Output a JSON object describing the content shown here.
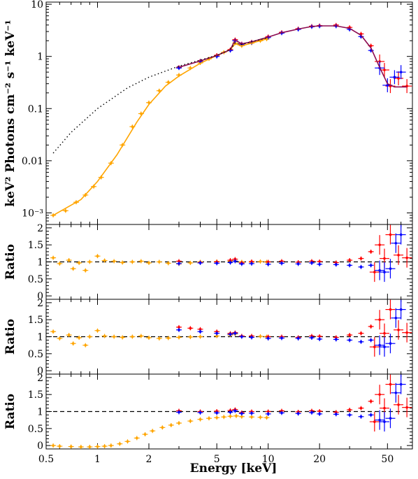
{
  "chart_data": {
    "type": "scatter",
    "xlabel": "Energy [keV]",
    "xscale": "log",
    "xlim": [
      0.5,
      70
    ],
    "xticks": [
      "0.5",
      "1",
      "2",
      "5",
      "10",
      "20",
      "50"
    ],
    "xtick_values": [
      0.5,
      1,
      2,
      5,
      10,
      20,
      50
    ],
    "colors": {
      "orange": "#FFA500",
      "red": "#FF0000",
      "blue": "#0000FF",
      "model": "#8B0A50",
      "dotted": "#000000"
    },
    "panels": [
      {
        "name": "spectrum",
        "ylabel": "keV² Photons cm⁻² s⁻¹ keV⁻¹",
        "yscale": "log",
        "ylim": [
          0.0006,
          11
        ],
        "yticks": [
          "10⁻³",
          "0.01",
          "0.1",
          "1",
          "10"
        ],
        "ytick_values": [
          0.001,
          0.01,
          0.1,
          1,
          10
        ],
        "series": [
          {
            "role": "orange data",
            "color": "#FFA500",
            "x": [
              0.55,
              0.65,
              0.75,
              0.85,
              0.95,
              1.05,
              1.2,
              1.4,
              1.6,
              1.8,
              2.0,
              2.3,
              2.6,
              3.0,
              3.5,
              4.0,
              4.5,
              5.0,
              5.5,
              6.0,
              6.4,
              7.0,
              8.0,
              9.0,
              9.8
            ],
            "y": [
              0.0009,
              0.0011,
              0.0016,
              0.0022,
              0.0032,
              0.0048,
              0.009,
              0.02,
              0.045,
              0.08,
              0.13,
              0.22,
              0.32,
              0.44,
              0.6,
              0.75,
              0.9,
              1.05,
              1.2,
              1.35,
              1.8,
              1.6,
              1.8,
              2.0,
              2.15
            ]
          },
          {
            "role": "red data",
            "color": "#FF0000",
            "x": [
              3,
              4,
              5,
              6,
              6.4,
              7,
              8,
              10,
              12,
              15,
              18,
              20,
              25,
              30,
              35,
              40,
              45,
              48,
              52,
              58,
              65
            ],
            "y": [
              0.62,
              0.82,
              1.05,
              1.35,
              2.1,
              1.75,
              1.9,
              2.4,
              2.9,
              3.4,
              3.8,
              3.9,
              4.0,
              3.6,
              2.7,
              1.6,
              0.8,
              0.55,
              0.27,
              0.38,
              0.27
            ]
          },
          {
            "role": "blue data",
            "color": "#0000FF",
            "x": [
              3,
              4,
              5,
              6,
              6.4,
              7,
              8,
              10,
              12,
              15,
              18,
              20,
              25,
              30,
              35,
              40,
              45,
              50,
              55,
              60
            ],
            "y": [
              0.6,
              0.8,
              1.0,
              1.3,
              2.0,
              1.7,
              1.85,
              2.3,
              2.8,
              3.3,
              3.7,
              3.8,
              3.8,
              3.3,
              2.4,
              1.3,
              0.6,
              0.28,
              0.4,
              0.5
            ]
          },
          {
            "role": "orange model",
            "color": "#FFA500",
            "line": true,
            "x": [
              0.55,
              0.8,
              1.0,
              1.3,
              1.7,
              2.0,
              2.5,
              3.0,
              4.0,
              5.0,
              6.0,
              6.4,
              7.0,
              10.0
            ],
            "y": [
              0.0009,
              0.0018,
              0.004,
              0.013,
              0.055,
              0.12,
              0.27,
              0.42,
              0.74,
              1.04,
              1.35,
              1.75,
              1.6,
              2.2
            ]
          },
          {
            "role": "model",
            "color": "#8B0A50",
            "line": true,
            "x": [
              3,
              4,
              5,
              6,
              6.4,
              7,
              8,
              10,
              12,
              15,
              18,
              20,
              25,
              30,
              35,
              40,
              45,
              50,
              55,
              60,
              65
            ],
            "y": [
              0.62,
              0.82,
              1.04,
              1.35,
              2.05,
              1.75,
              1.9,
              2.35,
              2.85,
              3.35,
              3.75,
              3.85,
              3.85,
              3.45,
              2.55,
              1.45,
              0.62,
              0.3,
              0.26,
              0.26,
              0.26
            ]
          },
          {
            "role": "unabsorbed model",
            "color": "#000000",
            "dotted": true,
            "x": [
              0.55,
              0.7,
              1.0,
              1.5,
              2.0,
              3.0,
              4.0,
              5.0,
              6.0,
              6.4,
              7.0,
              10.0
            ],
            "y": [
              0.014,
              0.035,
              0.1,
              0.25,
              0.4,
              0.65,
              0.85,
              1.05,
              1.35,
              1.8,
              1.7,
              2.3
            ]
          }
        ]
      },
      {
        "name": "ratio1",
        "ylabel": "Ratio",
        "ylim": [
          -0.1,
          2.1
        ],
        "yticks": [
          "0",
          "0.5",
          "1",
          "1.5",
          "2"
        ],
        "ytick_values": [
          0,
          0.5,
          1,
          1.5,
          2
        ],
        "refline": 1,
        "series": [
          {
            "role": "orange",
            "color": "#FFA500",
            "x": [
              0.55,
              0.6,
              0.68,
              0.72,
              0.78,
              0.85,
              0.9,
              1.0,
              1.1,
              1.25,
              1.4,
              1.6,
              1.8,
              2.0,
              2.3,
              2.6,
              3.0,
              3.5,
              4.0,
              5.0,
              6.0,
              6.4,
              7.0,
              8.0,
              9.0,
              9.8
            ],
            "y": [
              1.12,
              0.95,
              1.05,
              0.8,
              0.97,
              0.75,
              1.0,
              1.17,
              1.04,
              1.02,
              0.98,
              1.0,
              1.02,
              0.97,
              1.0,
              0.96,
              0.94,
              0.97,
              1.0,
              1.01,
              1.02,
              1.03,
              1.0,
              0.99,
              1.01,
              1.0
            ]
          },
          {
            "role": "red",
            "color": "#FF0000",
            "x": [
              3,
              4,
              5,
              6,
              6.4,
              7,
              8,
              10,
              12,
              15,
              18,
              20,
              25,
              30,
              35,
              40,
              42,
              45,
              48,
              52,
              58,
              65
            ],
            "y": [
              1.02,
              0.98,
              1.0,
              1.05,
              1.08,
              0.97,
              1.01,
              1.0,
              1.02,
              0.99,
              1.02,
              1.01,
              0.98,
              1.05,
              1.1,
              1.3,
              0.7,
              1.5,
              1.1,
              1.8,
              1.2,
              1.12
            ]
          },
          {
            "role": "blue",
            "color": "#0000FF",
            "x": [
              3,
              4,
              5,
              6,
              6.4,
              7,
              8,
              10,
              12,
              15,
              18,
              20,
              25,
              30,
              35,
              40,
              45,
              48,
              52,
              56,
              60
            ],
            "y": [
              0.95,
              0.97,
              0.96,
              0.98,
              1.02,
              0.94,
              0.95,
              0.93,
              0.96,
              0.94,
              0.97,
              0.93,
              0.92,
              0.9,
              0.85,
              0.9,
              0.75,
              0.7,
              0.8,
              1.55,
              1.8
            ]
          }
        ]
      },
      {
        "name": "ratio2",
        "ylabel": "Ratio",
        "ylim": [
          -0.1,
          2.1
        ],
        "yticks": [
          "0",
          "0.5",
          "1",
          "1.5",
          "2"
        ],
        "ytick_values": [
          0,
          0.5,
          1,
          1.5,
          2
        ],
        "refline": 1,
        "series": [
          {
            "role": "orange",
            "color": "#FFA500",
            "x": [
              0.55,
              0.6,
              0.68,
              0.72,
              0.78,
              0.85,
              0.9,
              1.0,
              1.1,
              1.25,
              1.4,
              1.6,
              1.8,
              2.0,
              2.3,
              2.6,
              3.0,
              3.5,
              4.0,
              5.0,
              6.0,
              6.4,
              7.0,
              8.0,
              9.0,
              9.8
            ],
            "y": [
              1.15,
              0.95,
              1.05,
              0.8,
              0.97,
              0.75,
              1.0,
              1.18,
              1.02,
              1.0,
              0.98,
              1.0,
              1.02,
              0.97,
              0.95,
              0.96,
              0.98,
              0.99,
              1.0,
              1.02,
              1.05,
              1.08,
              1.02,
              1.02,
              1.01,
              1.0
            ]
          },
          {
            "role": "red",
            "color": "#FF0000",
            "x": [
              3,
              3.5,
              4,
              5,
              6,
              6.4,
              7,
              8,
              10,
              12,
              15,
              18,
              20,
              25,
              30,
              35,
              40,
              42,
              45,
              48,
              52,
              58,
              65
            ],
            "y": [
              1.28,
              1.25,
              1.22,
              1.15,
              1.1,
              1.12,
              1.02,
              1.02,
              1.0,
              1.0,
              0.98,
              1.02,
              1.01,
              0.98,
              1.05,
              1.1,
              1.3,
              0.7,
              1.5,
              1.1,
              1.8,
              1.2,
              1.12
            ]
          },
          {
            "role": "blue",
            "color": "#0000FF",
            "x": [
              3,
              4,
              5,
              6,
              6.4,
              7,
              8,
              10,
              12,
              15,
              18,
              20,
              25,
              30,
              35,
              40,
              45,
              48,
              52,
              56,
              60
            ],
            "y": [
              1.2,
              1.15,
              1.1,
              1.07,
              1.1,
              1.0,
              0.98,
              0.95,
              0.96,
              0.95,
              0.97,
              0.93,
              0.92,
              0.9,
              0.85,
              0.9,
              0.75,
              0.7,
              0.8,
              1.55,
              1.8
            ]
          }
        ]
      },
      {
        "name": "ratio3",
        "ylabel": "Ratio",
        "ylim": [
          -0.1,
          2.1
        ],
        "yticks": [
          "0",
          "0.5",
          "1",
          "1.5",
          "2"
        ],
        "ytick_values": [
          0,
          0.5,
          1,
          1.5,
          2
        ],
        "refline": 1,
        "series": [
          {
            "role": "orange",
            "color": "#FFA500",
            "x": [
              0.55,
              0.6,
              0.7,
              0.8,
              0.9,
              1.0,
              1.1,
              1.2,
              1.35,
              1.5,
              1.7,
              1.9,
              2.1,
              2.4,
              2.7,
              3.0,
              3.5,
              4.0,
              4.5,
              5.0,
              5.5,
              6.0,
              6.5,
              7.0,
              8.0,
              9.0,
              9.8
            ],
            "y": [
              0.0,
              -0.02,
              -0.03,
              -0.04,
              -0.04,
              -0.03,
              -0.02,
              0.0,
              0.05,
              0.12,
              0.22,
              0.33,
              0.43,
              0.53,
              0.6,
              0.66,
              0.72,
              0.77,
              0.8,
              0.82,
              0.84,
              0.86,
              0.87,
              0.85,
              0.84,
              0.83,
              0.82
            ]
          },
          {
            "role": "red",
            "color": "#FF0000",
            "x": [
              3,
              4,
              5,
              6,
              6.4,
              7,
              8,
              10,
              12,
              15,
              18,
              20,
              25,
              30,
              35,
              40,
              42,
              45,
              48,
              52,
              58,
              65
            ],
            "y": [
              1.02,
              1.0,
              1.01,
              1.03,
              1.06,
              0.97,
              1.0,
              1.0,
              1.02,
              0.99,
              1.02,
              1.01,
              0.98,
              1.05,
              1.1,
              1.3,
              0.7,
              1.5,
              1.1,
              1.8,
              1.2,
              1.12
            ]
          },
          {
            "role": "blue",
            "color": "#0000FF",
            "x": [
              3,
              4,
              5,
              6,
              6.4,
              7,
              8,
              10,
              12,
              15,
              18,
              20,
              25,
              30,
              35,
              40,
              45,
              48,
              52,
              56,
              60
            ],
            "y": [
              0.98,
              0.97,
              0.96,
              0.98,
              1.02,
              0.94,
              0.95,
              0.93,
              0.96,
              0.94,
              0.97,
              0.93,
              0.92,
              0.9,
              0.85,
              0.9,
              0.75,
              0.7,
              0.8,
              1.55,
              1.8
            ]
          }
        ]
      }
    ]
  }
}
